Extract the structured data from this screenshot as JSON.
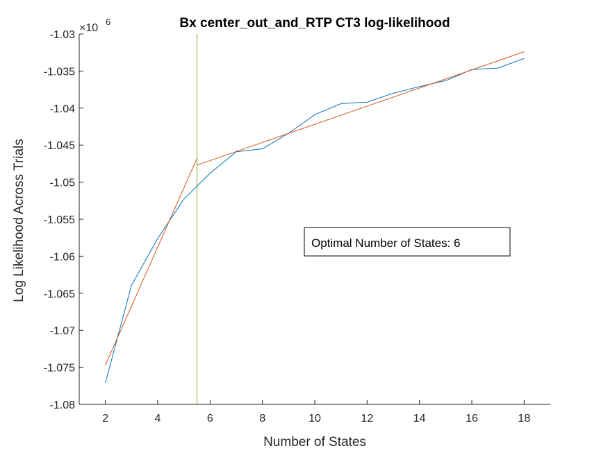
{
  "chart_data": {
    "type": "line",
    "title": "Bx center_out_and_RTP CT3 log-likelihood",
    "xlabel": "Number of States",
    "ylabel": "Log Likelihood Across Trials",
    "exponent_label": "×10",
    "exponent_power": "6",
    "xlim": [
      1,
      19
    ],
    "ylim": [
      -1.08,
      -1.03
    ],
    "xticks": [
      2,
      4,
      6,
      8,
      10,
      12,
      14,
      16,
      18
    ],
    "xtick_labels": [
      "2",
      "4",
      "6",
      "8",
      "10",
      "12",
      "14",
      "16",
      "18"
    ],
    "yticks": [
      -1.08,
      -1.075,
      -1.07,
      -1.065,
      -1.06,
      -1.055,
      -1.05,
      -1.045,
      -1.04,
      -1.035,
      -1.03
    ],
    "ytick_labels": [
      "-1.08",
      "-1.075",
      "-1.07",
      "-1.065",
      "-1.06",
      "-1.055",
      "-1.05",
      "-1.045",
      "-1.04",
      "-1.035",
      "-1.03"
    ],
    "grid": false,
    "legend": "none",
    "series": [
      {
        "color": "#0072BD",
        "x": [
          2,
          3,
          4,
          5,
          6,
          7,
          8,
          9,
          10,
          11,
          12,
          13,
          14,
          15,
          16,
          17,
          18
        ],
        "y": [
          -1.0771,
          -1.0639,
          -1.0576,
          -1.0523,
          -1.0488,
          -1.0459,
          -1.0455,
          -1.0434,
          -1.0409,
          -1.0394,
          -1.0392,
          -1.038,
          -1.0371,
          -1.0363,
          -1.0348,
          -1.0346,
          -1.0333
        ]
      },
      {
        "color": "#D95319",
        "x": [
          2,
          5.5
        ],
        "y": [
          -1.0747,
          -1.0468
        ]
      },
      {
        "color": "#D95319",
        "x": [
          5.5,
          18
        ],
        "y": [
          -1.0477,
          -1.0324
        ]
      }
    ],
    "vline": {
      "x": 5.5,
      "color": "#77AC30"
    },
    "annotation": "Optimal Number of States: 6"
  }
}
